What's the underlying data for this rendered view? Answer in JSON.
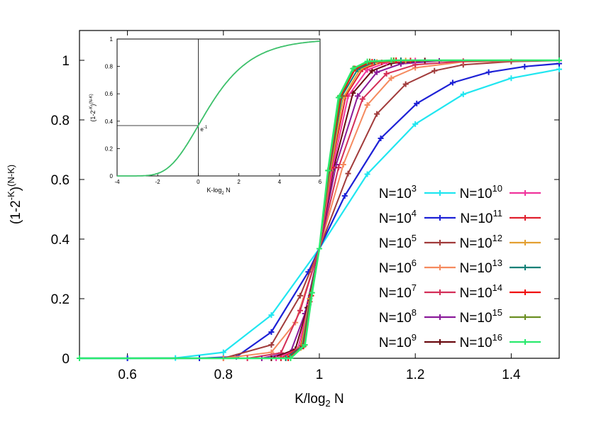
{
  "chart_data": [
    {
      "type": "line",
      "role": "main",
      "title": "",
      "xlabel": "K/log",
      "xlabel_sub": "2",
      "xlabel_tail": " N",
      "ylabel": "(1-2",
      "ylabel_sup1": "-K",
      "ylabel_mid": ")",
      "ylabel_sup2": "(N-K)",
      "xlim": [
        0.5,
        1.5
      ],
      "ylim": [
        0,
        1.1
      ],
      "xticks": [
        "0.6",
        "0.8",
        "1",
        "1.2",
        "1.4"
      ],
      "yticks": [
        "0",
        "0.2",
        "0.4",
        "0.6",
        "0.8",
        "1"
      ],
      "legend_position": "lower-right",
      "series": [
        {
          "name": "N=10",
          "exp": "3",
          "color": "#20e6f0",
          "width": 2.2,
          "x": [
            0.5,
            0.6,
            0.7,
            0.8,
            0.9,
            1.0,
            1.1,
            1.2,
            1.3,
            1.4,
            1.5
          ],
          "y": [
            0,
            0,
            0.001,
            0.02,
            0.145,
            0.368,
            0.618,
            0.786,
            0.886,
            0.94,
            0.97
          ]
        },
        {
          "name": "N=10",
          "exp": "4",
          "color": "#1d21d6",
          "width": 2.2,
          "x": [
            0.5,
            0.6,
            0.75,
            0.827,
            0.9,
            0.977,
            1.0,
            1.053,
            1.128,
            1.203,
            1.278,
            1.353,
            1.428,
            1.5
          ],
          "y": [
            0,
            0,
            0,
            0.005,
            0.088,
            0.29,
            0.368,
            0.545,
            0.738,
            0.855,
            0.925,
            0.96,
            0.979,
            0.989
          ]
        },
        {
          "name": "N=10",
          "exp": "5",
          "color": "#a13b3b",
          "width": 2,
          "x": [
            0.5,
            0.8,
            0.9,
            0.96,
            1.0,
            1.06,
            1.12,
            1.18,
            1.24,
            1.3,
            1.4,
            1.5
          ],
          "y": [
            0,
            0,
            0.045,
            0.21,
            0.368,
            0.62,
            0.82,
            0.92,
            0.965,
            0.985,
            0.996,
            0.999
          ]
        },
        {
          "name": "N=10",
          "exp": "6",
          "color": "#f58a5e",
          "width": 2,
          "x": [
            0.5,
            0.8,
            0.9,
            0.95,
            1.0,
            1.05,
            1.1,
            1.15,
            1.2,
            1.3,
            1.5
          ],
          "y": [
            0,
            0,
            0.02,
            0.12,
            0.368,
            0.65,
            0.85,
            0.94,
            0.975,
            0.995,
            1
          ]
        },
        {
          "name": "N=10",
          "exp": "7",
          "color": "#d42e57",
          "width": 2,
          "x": [
            0.5,
            0.85,
            0.92,
            0.96,
            1.0,
            1.04,
            1.09,
            1.14,
            1.2,
            1.3,
            1.5
          ],
          "y": [
            0,
            0,
            0.018,
            0.16,
            0.368,
            0.64,
            0.87,
            0.955,
            0.985,
            0.997,
            1
          ]
        },
        {
          "name": "N=10",
          "exp": "8",
          "color": "#8a1a9a",
          "width": 2,
          "x": [
            0.5,
            0.88,
            0.94,
            0.97,
            1.0,
            1.035,
            1.08,
            1.12,
            1.17,
            1.25,
            1.5
          ],
          "y": [
            0,
            0,
            0.02,
            0.15,
            0.368,
            0.65,
            0.88,
            0.96,
            0.988,
            0.998,
            1
          ]
        },
        {
          "name": "N=10",
          "exp": "9",
          "color": "#6a0a10",
          "width": 2,
          "x": [
            0.5,
            0.9,
            0.95,
            0.975,
            1.0,
            1.03,
            1.07,
            1.11,
            1.15,
            1.22,
            1.5
          ],
          "y": [
            0,
            0,
            0.03,
            0.17,
            0.368,
            0.64,
            0.89,
            0.965,
            0.99,
            0.999,
            1
          ]
        },
        {
          "name": "N=10",
          "exp": "10",
          "color": "#f0349c",
          "width": 2,
          "x": [
            0.5,
            0.91,
            0.955,
            0.978,
            1.0,
            1.028,
            1.06,
            1.1,
            1.14,
            1.2,
            1.5
          ],
          "y": [
            0,
            0,
            0.03,
            0.18,
            0.368,
            0.64,
            0.88,
            0.968,
            0.992,
            0.999,
            1
          ]
        },
        {
          "name": "N=10",
          "exp": "11",
          "color": "#e0202e",
          "width": 2,
          "x": [
            0.5,
            0.92,
            0.96,
            0.98,
            1.0,
            1.025,
            1.055,
            1.09,
            1.13,
            1.19,
            1.5
          ],
          "y": [
            0,
            0,
            0.035,
            0.19,
            0.368,
            0.64,
            0.88,
            0.97,
            0.993,
            0.999,
            1
          ]
        },
        {
          "name": "N=10",
          "exp": "12",
          "color": "#e3a032",
          "width": 2,
          "x": [
            0.5,
            0.93,
            0.962,
            0.98,
            1.0,
            1.023,
            1.05,
            1.085,
            1.12,
            1.18,
            1.5
          ],
          "y": [
            0,
            0,
            0.035,
            0.2,
            0.368,
            0.63,
            0.875,
            0.97,
            0.994,
            0.999,
            1
          ]
        },
        {
          "name": "N=10",
          "exp": "13",
          "color": "#0f8077",
          "width": 2,
          "x": [
            0.5,
            0.93,
            0.965,
            0.982,
            1.0,
            1.021,
            1.047,
            1.08,
            1.115,
            1.17,
            1.5
          ],
          "y": [
            0,
            0,
            0.04,
            0.21,
            0.368,
            0.63,
            0.88,
            0.97,
            0.995,
            1,
            1
          ]
        },
        {
          "name": "N=10",
          "exp": "14",
          "color": "#f01010",
          "width": 2,
          "x": [
            0.5,
            0.935,
            0.967,
            0.983,
            1.0,
            1.02,
            1.045,
            1.075,
            1.11,
            1.16,
            1.5
          ],
          "y": [
            0,
            0,
            0.04,
            0.21,
            0.368,
            0.63,
            0.88,
            0.972,
            0.995,
            1,
            1
          ]
        },
        {
          "name": "N=10",
          "exp": "15",
          "color": "#6b8f23",
          "width": 2,
          "x": [
            0.5,
            0.94,
            0.969,
            0.984,
            1.0,
            1.019,
            1.043,
            1.072,
            1.105,
            1.155,
            1.5
          ],
          "y": [
            0,
            0,
            0.045,
            0.22,
            0.368,
            0.63,
            0.88,
            0.973,
            0.996,
            1,
            1
          ]
        },
        {
          "name": "N=10",
          "exp": "16",
          "color": "#2aea6e",
          "width": 2.6,
          "x": [
            0.5,
            0.94,
            0.97,
            0.985,
            1.0,
            1.018,
            1.04,
            1.07,
            1.1,
            1.15,
            1.5
          ],
          "y": [
            0,
            0,
            0.045,
            0.22,
            0.368,
            0.63,
            0.875,
            0.972,
            0.996,
            1,
            1
          ]
        }
      ]
    },
    {
      "type": "line",
      "role": "inset",
      "xlabel": "K-log",
      "xlabel_sub": "2",
      "xlabel_tail": " N",
      "ylabel": "(1-2",
      "ylabel_sup1": "-K",
      "ylabel_mid": ")",
      "ylabel_sup2": "(N-K)",
      "xlim": [
        -4,
        6
      ],
      "ylim": [
        0,
        1
      ],
      "xticks": [
        "-4",
        "-2",
        "0",
        "2",
        "4",
        "6"
      ],
      "yticks": [
        "0",
        "0.2",
        "0.4",
        "0.6",
        "0.8",
        "1"
      ],
      "annotation_base": "e",
      "annotation_sup": "-1",
      "reference_point": {
        "x": 0,
        "y": 0.368
      },
      "curve_color": "#3cc06a",
      "curve": "exp(-2^-x)"
    }
  ]
}
